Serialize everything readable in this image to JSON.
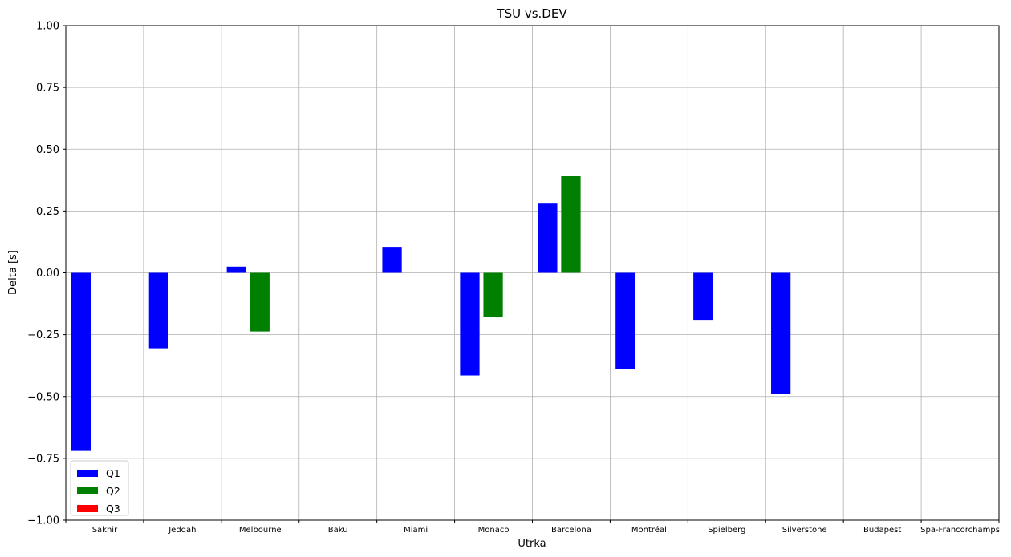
{
  "chart_data": {
    "type": "bar",
    "title": "TSU vs.DEV",
    "xlabel": "Utrka",
    "ylabel": "Delta [s]",
    "ylim": [
      -1.0,
      1.0
    ],
    "yticks": [
      -1.0,
      -0.75,
      -0.5,
      -0.25,
      0.0,
      0.25,
      0.5,
      0.75,
      1.0
    ],
    "ytick_labels": [
      "−1.00",
      "−0.75",
      "−0.50",
      "−0.25",
      "0.00",
      "0.25",
      "0.50",
      "0.75",
      "1.00"
    ],
    "grid": true,
    "legend_position": "lower-left",
    "categories": [
      "Sakhir",
      "Jeddah",
      "Melbourne",
      "Baku",
      "Miami",
      "Monaco",
      "Barcelona",
      "Montréal",
      "Spielberg",
      "Silverstone",
      "Budapest",
      "Spa-Francorchamps"
    ],
    "series": [
      {
        "name": "Q1",
        "color": "#0000ff",
        "values": [
          -0.72,
          -0.305,
          0.025,
          null,
          0.105,
          -0.415,
          0.283,
          -0.39,
          -0.19,
          -0.488,
          null,
          null
        ]
      },
      {
        "name": "Q2",
        "color": "#008000",
        "values": [
          null,
          null,
          -0.237,
          null,
          null,
          -0.18,
          0.393,
          null,
          null,
          null,
          null,
          null
        ]
      },
      {
        "name": "Q3",
        "color": "#ff0000",
        "values": [
          null,
          null,
          null,
          null,
          null,
          null,
          null,
          null,
          null,
          null,
          null,
          null
        ]
      }
    ]
  }
}
